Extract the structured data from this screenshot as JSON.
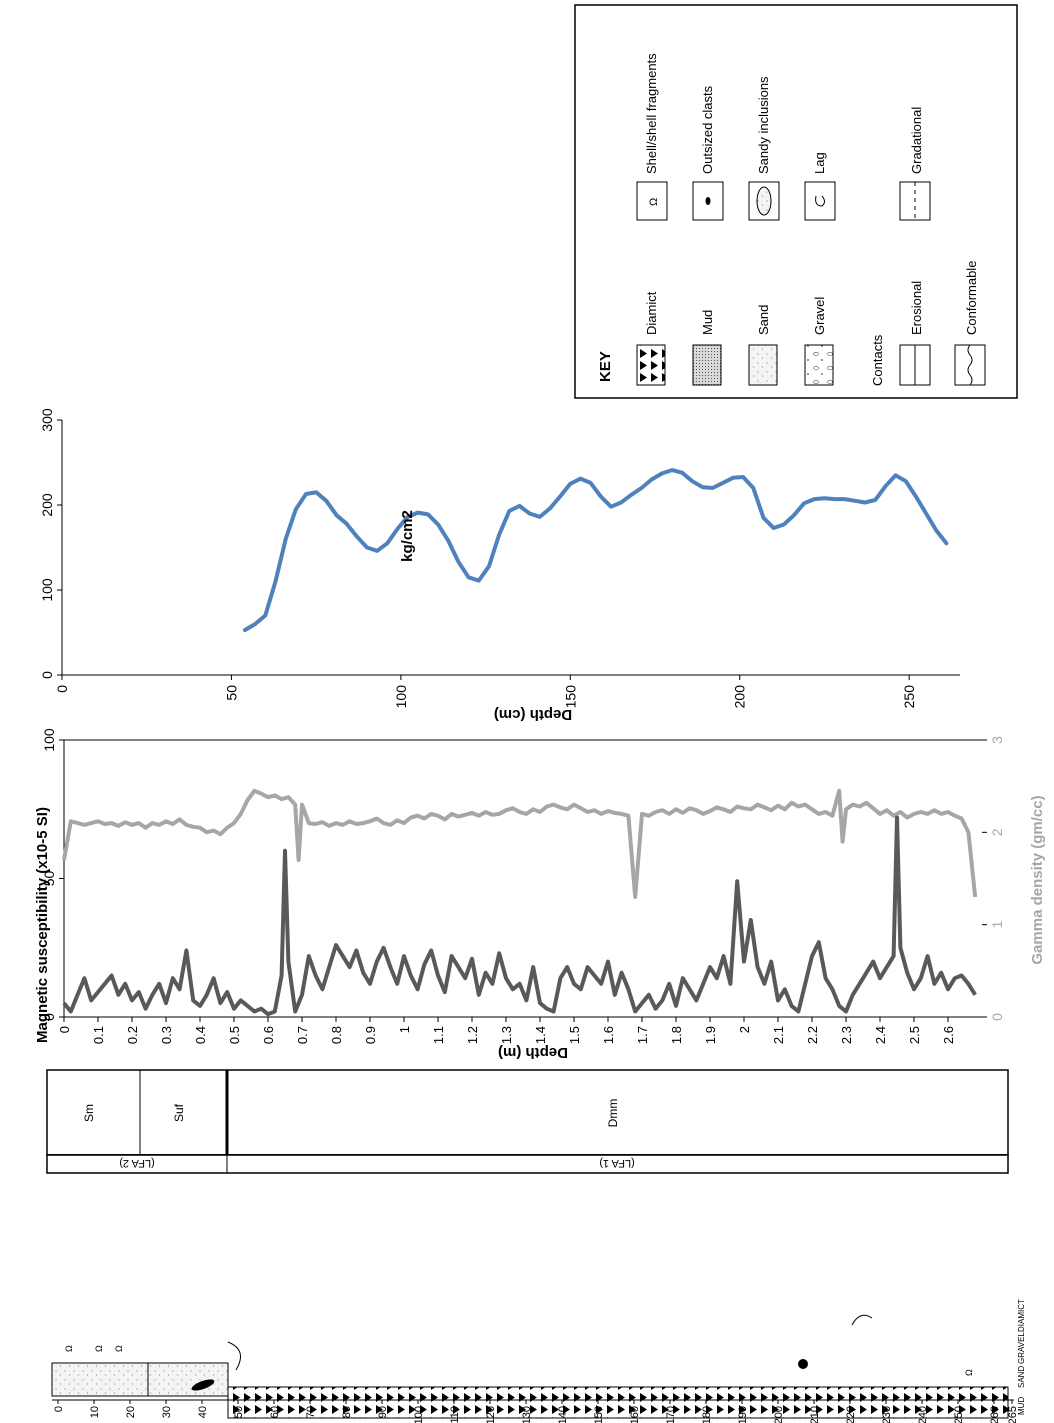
{
  "chart_data": [
    {
      "type": "line",
      "title": "",
      "xlabel": "Depth (cm)",
      "ylabel": "kg/cm2",
      "xlim": [
        0,
        265
      ],
      "ylim": [
        0,
        300
      ],
      "xticks": [
        "0",
        "50",
        "100",
        "150",
        "200",
        "250"
      ],
      "yticks": [
        "0",
        "100",
        "200",
        "300"
      ],
      "series": [
        {
          "color": "#4f81bd",
          "x": [
            54,
            57,
            60,
            63,
            66,
            69,
            72,
            75,
            78,
            81,
            84,
            87,
            90,
            93,
            96,
            99,
            102,
            105,
            108,
            111,
            114,
            117,
            120,
            123,
            126,
            129,
            132,
            135,
            138,
            141,
            144,
            147,
            150,
            153,
            156,
            159,
            162,
            165,
            168,
            171,
            174,
            177,
            180,
            183,
            186,
            189,
            192,
            195,
            198,
            201,
            204,
            207,
            210,
            213,
            216,
            219,
            222,
            225,
            228,
            231,
            234,
            237,
            240,
            243,
            246,
            249,
            252,
            255,
            258,
            261
          ],
          "values": [
            53,
            60,
            70,
            110,
            160,
            195,
            213,
            215,
            205,
            188,
            178,
            163,
            150,
            146,
            155,
            172,
            186,
            191,
            189,
            177,
            158,
            133,
            115,
            111,
            128,
            165,
            193,
            199,
            190,
            186,
            196,
            210,
            225,
            231,
            226,
            210,
            198,
            203,
            212,
            220,
            230,
            237,
            241,
            238,
            228,
            221,
            220,
            226,
            232,
            233,
            220,
            185,
            173,
            177,
            188,
            202,
            207,
            208,
            207,
            207,
            205,
            203,
            206,
            222,
            235,
            228,
            210,
            190,
            170,
            155
          ]
        }
      ]
    },
    {
      "type": "line",
      "title": "",
      "xlabel": "Depth (m)",
      "ylabel": "Magnetic susceptibility (x10-5 SI)",
      "y2label": "Gamma density (gm/cc)",
      "xlim": [
        0,
        2.7
      ],
      "ylim": [
        0,
        100
      ],
      "y2lim": [
        0,
        3
      ],
      "xticks": [
        "0",
        "0.1",
        "0.2",
        "0.3",
        "0.4",
        "0.5",
        "0.6",
        "0.7",
        "0.8",
        "0.9",
        "1",
        "1.1",
        "1.2",
        "1.3",
        "1.4",
        "1.5",
        "1.6",
        "1.7",
        "1.8",
        "1.9",
        "2",
        "2.1",
        "2.2",
        "2.3",
        "2.4",
        "2.5",
        "2.6"
      ],
      "yticks": [
        "0",
        "50",
        "100"
      ],
      "y2ticks": [
        "0",
        "1",
        "2",
        "3"
      ],
      "series": [
        {
          "axis": "left",
          "color": "#595959",
          "x": [
            0,
            0.02,
            0.04,
            0.06,
            0.08,
            0.1,
            0.12,
            0.14,
            0.16,
            0.18,
            0.2,
            0.22,
            0.24,
            0.26,
            0.28,
            0.3,
            0.32,
            0.34,
            0.36,
            0.38,
            0.4,
            0.42,
            0.44,
            0.46,
            0.48,
            0.5,
            0.52,
            0.54,
            0.56,
            0.58,
            0.6,
            0.62,
            0.64,
            0.65,
            0.66,
            0.68,
            0.7,
            0.72,
            0.74,
            0.76,
            0.78,
            0.8,
            0.82,
            0.84,
            0.86,
            0.88,
            0.9,
            0.92,
            0.94,
            0.96,
            0.98,
            1.0,
            1.02,
            1.04,
            1.06,
            1.08,
            1.1,
            1.12,
            1.14,
            1.16,
            1.18,
            1.2,
            1.22,
            1.24,
            1.26,
            1.28,
            1.3,
            1.32,
            1.34,
            1.36,
            1.38,
            1.4,
            1.42,
            1.44,
            1.46,
            1.48,
            1.5,
            1.52,
            1.54,
            1.56,
            1.58,
            1.6,
            1.62,
            1.64,
            1.66,
            1.68,
            1.7,
            1.72,
            1.74,
            1.76,
            1.78,
            1.8,
            1.82,
            1.84,
            1.86,
            1.88,
            1.9,
            1.92,
            1.94,
            1.96,
            1.98,
            2.0,
            2.02,
            2.04,
            2.06,
            2.08,
            2.1,
            2.12,
            2.14,
            2.16,
            2.18,
            2.2,
            2.22,
            2.24,
            2.26,
            2.28,
            2.3,
            2.32,
            2.34,
            2.36,
            2.38,
            2.4,
            2.42,
            2.44,
            2.45,
            2.46,
            2.48,
            2.5,
            2.52,
            2.54,
            2.56,
            2.58,
            2.6,
            2.62,
            2.64,
            2.66,
            2.68
          ],
          "values": [
            5,
            2,
            8,
            14,
            6,
            9,
            12,
            15,
            8,
            12,
            6,
            9,
            3,
            8,
            12,
            5,
            14,
            10,
            24,
            6,
            4,
            8,
            14,
            5,
            9,
            3,
            6,
            4,
            2,
            3,
            1,
            2,
            15,
            60,
            20,
            2,
            8,
            22,
            15,
            10,
            18,
            26,
            22,
            18,
            24,
            16,
            12,
            20,
            25,
            18,
            12,
            22,
            15,
            10,
            19,
            24,
            15,
            9,
            22,
            18,
            14,
            21,
            8,
            16,
            12,
            23,
            14,
            10,
            12,
            6,
            18,
            5,
            3,
            2,
            14,
            18,
            12,
            10,
            18,
            15,
            12,
            20,
            8,
            16,
            10,
            2,
            5,
            8,
            3,
            6,
            12,
            4,
            14,
            10,
            6,
            12,
            18,
            14,
            22,
            12,
            49,
            20,
            35,
            18,
            12,
            20,
            6,
            10,
            4,
            2,
            12,
            22,
            27,
            14,
            10,
            4,
            2,
            8,
            12,
            16,
            20,
            14,
            18,
            22,
            72,
            25,
            16,
            10,
            14,
            22,
            12,
            16,
            10,
            14,
            15,
            12,
            8
          ]
        },
        {
          "axis": "right",
          "color": "#a6a6a6",
          "x": [
            0,
            0.02,
            0.04,
            0.06,
            0.08,
            0.1,
            0.12,
            0.14,
            0.16,
            0.18,
            0.2,
            0.22,
            0.24,
            0.26,
            0.28,
            0.3,
            0.32,
            0.34,
            0.36,
            0.38,
            0.4,
            0.42,
            0.44,
            0.46,
            0.48,
            0.5,
            0.52,
            0.54,
            0.56,
            0.58,
            0.6,
            0.62,
            0.64,
            0.66,
            0.68,
            0.69,
            0.7,
            0.72,
            0.74,
            0.76,
            0.78,
            0.8,
            0.82,
            0.84,
            0.86,
            0.88,
            0.9,
            0.92,
            0.94,
            0.96,
            0.98,
            1.0,
            1.02,
            1.04,
            1.06,
            1.08,
            1.1,
            1.12,
            1.14,
            1.16,
            1.18,
            1.2,
            1.22,
            1.24,
            1.26,
            1.28,
            1.3,
            1.32,
            1.34,
            1.36,
            1.38,
            1.4,
            1.42,
            1.44,
            1.46,
            1.48,
            1.5,
            1.52,
            1.54,
            1.56,
            1.58,
            1.6,
            1.62,
            1.64,
            1.66,
            1.68,
            1.7,
            1.72,
            1.74,
            1.76,
            1.78,
            1.8,
            1.82,
            1.84,
            1.86,
            1.88,
            1.9,
            1.92,
            1.94,
            1.96,
            1.98,
            2.0,
            2.02,
            2.04,
            2.06,
            2.08,
            2.1,
            2.12,
            2.14,
            2.16,
            2.18,
            2.2,
            2.22,
            2.24,
            2.26,
            2.28,
            2.29,
            2.3,
            2.32,
            2.34,
            2.36,
            2.38,
            2.4,
            2.42,
            2.44,
            2.46,
            2.48,
            2.5,
            2.52,
            2.54,
            2.56,
            2.58,
            2.6,
            2.62,
            2.64,
            2.66,
            2.68
          ],
          "values": [
            1.7,
            2.12,
            2.1,
            2.08,
            2.1,
            2.12,
            2.09,
            2.1,
            2.07,
            2.11,
            2.08,
            2.1,
            2.05,
            2.1,
            2.08,
            2.12,
            2.09,
            2.14,
            2.08,
            2.06,
            2.05,
            2.0,
            2.02,
            1.98,
            2.05,
            2.1,
            2.2,
            2.35,
            2.45,
            2.42,
            2.38,
            2.4,
            2.36,
            2.38,
            2.3,
            1.7,
            2.3,
            2.1,
            2.09,
            2.11,
            2.07,
            2.1,
            2.08,
            2.12,
            2.09,
            2.1,
            2.12,
            2.15,
            2.1,
            2.08,
            2.13,
            2.1,
            2.16,
            2.18,
            2.15,
            2.2,
            2.18,
            2.14,
            2.2,
            2.17,
            2.19,
            2.21,
            2.18,
            2.22,
            2.19,
            2.2,
            2.24,
            2.26,
            2.22,
            2.2,
            2.25,
            2.22,
            2.28,
            2.3,
            2.27,
            2.25,
            2.3,
            2.26,
            2.22,
            2.24,
            2.2,
            2.23,
            2.21,
            2.2,
            2.18,
            1.3,
            2.2,
            2.18,
            2.22,
            2.24,
            2.2,
            2.25,
            2.21,
            2.26,
            2.24,
            2.2,
            2.23,
            2.27,
            2.25,
            2.22,
            2.28,
            2.26,
            2.25,
            2.3,
            2.27,
            2.24,
            2.29,
            2.25,
            2.32,
            2.28,
            2.3,
            2.25,
            2.2,
            2.22,
            2.18,
            2.45,
            1.9,
            2.25,
            2.3,
            2.28,
            2.32,
            2.26,
            2.2,
            2.24,
            2.18,
            2.22,
            2.16,
            2.2,
            2.22,
            2.2,
            2.24,
            2.2,
            2.22,
            2.18,
            2.15,
            2.0,
            1.3
          ]
        }
      ]
    }
  ],
  "lithofacies_column": {
    "facies": [
      "Sm",
      "Suf",
      "Dmm"
    ],
    "associations": [
      "(LFA 2)",
      "(LFA 1)"
    ]
  },
  "log_column": {
    "depth_ticks": [
      "0",
      "10",
      "20",
      "30",
      "40",
      "50",
      "60",
      "70",
      "80",
      "90",
      "100",
      "110",
      "120",
      "130",
      "140",
      "150",
      "160",
      "170",
      "180",
      "190",
      "200",
      "210",
      "220",
      "230",
      "240",
      "250",
      "260",
      "265"
    ],
    "grain_size_labels": [
      "MUD",
      "SAND",
      "GRAVEL",
      "DIAMICT"
    ],
    "shell_symbol": "Ω"
  },
  "key": {
    "title": "KEY",
    "lithologies": [
      "Diamict",
      "Mud",
      "Sand",
      "Gravel"
    ],
    "contacts_title": "Contacts",
    "contacts": [
      "Erosional",
      "Conformable"
    ],
    "features": [
      "Shell/shell fragments",
      "Outsized clasts",
      "Sandy inclusions",
      "Lag"
    ],
    "gradational": "Gradational"
  }
}
